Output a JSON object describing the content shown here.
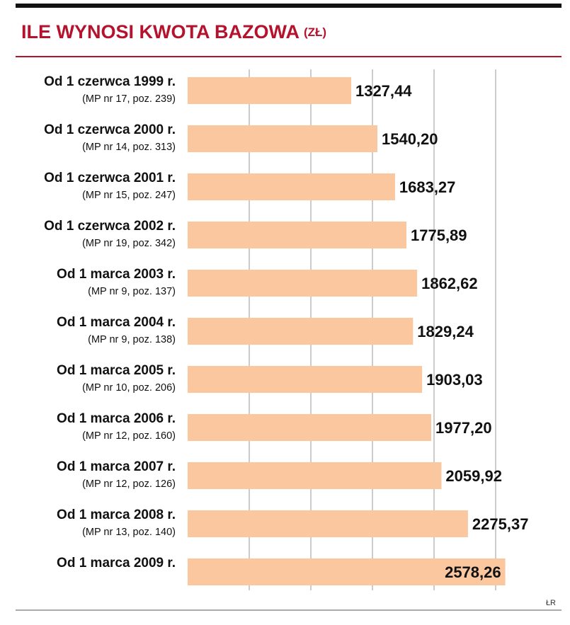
{
  "chart_data": {
    "type": "bar",
    "orientation": "horizontal",
    "title": "ILE WYNOSI KWOTA BAZOWA",
    "unit": "(ZŁ)",
    "categories": [
      "Od 1 czerwca 1999 r.",
      "Od 1 czerwca 2000 r.",
      "Od 1 czerwca 2001 r.",
      "Od 1 czerwca 2002 r.",
      "Od 1 marca 2003 r.",
      "Od 1 marca 2004 r.",
      "Od 1 marca 2005 r.",
      "Od 1 marca 2006 r.",
      "Od 1 marca 2007 r.",
      "Od 1 marca 2008 r.",
      "Od 1 marca 2009 r."
    ],
    "sublabels": [
      "(MP nr 17, poz. 239)",
      "(MP nr 14, poz. 313)",
      "(MP nr 15, poz. 247)",
      "(MP nr 19, poz. 342)",
      "(MP nr 9, poz. 137)",
      "(MP nr 9, poz. 138)",
      "(MP nr 10, poz. 206)",
      "(MP nr 12, poz. 160)",
      "(MP nr 12, poz. 126)",
      "(MP nr 13, poz. 140)",
      null
    ],
    "values": [
      1327.44,
      1540.2,
      1683.27,
      1775.89,
      1862.62,
      1829.24,
      1903.03,
      1977.2,
      2059.92,
      2275.37,
      2578.26
    ],
    "value_labels": [
      "1327,44",
      "1540,20",
      "1683,27",
      "1775,89",
      "1862,62",
      "1829,24",
      "1903,03",
      "1977,20",
      "2059,92",
      "2275,37",
      "2578,26"
    ],
    "color": "#fac79f",
    "xlim": [
      0,
      3000
    ],
    "xticks": [
      500,
      1000,
      1500,
      2000,
      2500
    ],
    "grid": true,
    "source": "ŁR"
  }
}
